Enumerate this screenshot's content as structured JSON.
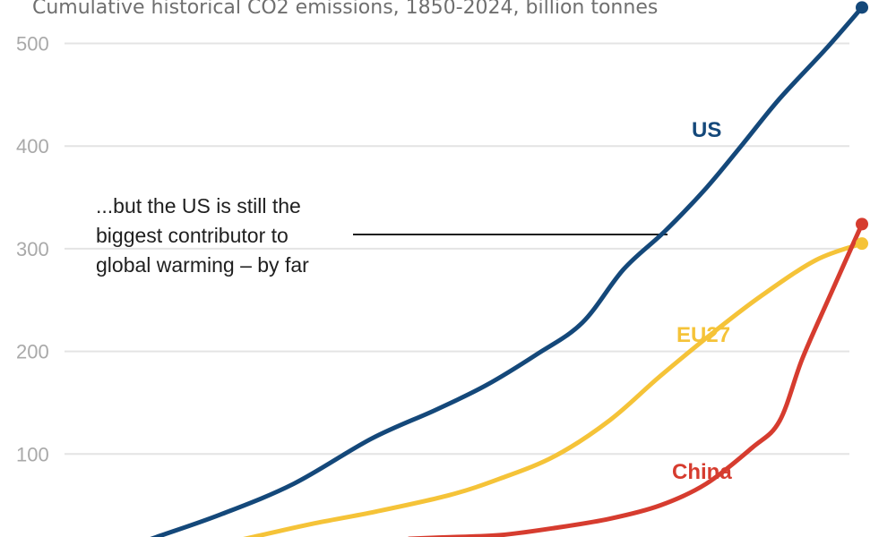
{
  "chart_data": {
    "type": "line",
    "title": "Cumulative historical CO2 emissions, 1850-2024, billion tonnes",
    "xlabel": "",
    "ylabel": "",
    "xlim": [
      1850,
      2024
    ],
    "ylim": [
      0,
      500
    ],
    "yticks": [
      100,
      200,
      300,
      400,
      500
    ],
    "ytick_labels": [
      "100",
      "200",
      "300",
      "400",
      "500"
    ],
    "grid": true,
    "legend": "inline labels",
    "series": [
      {
        "name": "US",
        "label": "US",
        "color": "#14487a",
        "end_marker": true,
        "points": [
          [
            1870,
            19
          ],
          [
            1884,
            41
          ],
          [
            1900,
            71
          ],
          [
            1917,
            115
          ],
          [
            1931,
            143
          ],
          [
            1942,
            167
          ],
          [
            1953,
            197
          ],
          [
            1963,
            228
          ],
          [
            1972,
            280
          ],
          [
            1981,
            317
          ],
          [
            1990,
            359
          ],
          [
            1998,
            402
          ],
          [
            2006,
            446
          ],
          [
            2016,
            494
          ],
          [
            2024,
            535
          ]
        ]
      },
      {
        "name": "EU27",
        "label": "EU27",
        "color": "#f5c338",
        "end_marker": true,
        "points": [
          [
            1891,
            19
          ],
          [
            1904,
            32
          ],
          [
            1918,
            44
          ],
          [
            1934,
            60
          ],
          [
            1945,
            76
          ],
          [
            1957,
            98
          ],
          [
            1969,
            133
          ],
          [
            1980,
            176
          ],
          [
            1992,
            220
          ],
          [
            2002,
            254
          ],
          [
            2014,
            289
          ],
          [
            2024,
            305
          ]
        ]
      },
      {
        "name": "China",
        "label": "China",
        "color": "#d63c2f",
        "end_marker": true,
        "points": [
          [
            1934,
            19
          ],
          [
            1945,
            21
          ],
          [
            1957,
            28
          ],
          [
            1969,
            37
          ],
          [
            1980,
            50
          ],
          [
            1990,
            71
          ],
          [
            2000,
            106
          ],
          [
            2006,
            132
          ],
          [
            2011,
            193
          ],
          [
            2017,
            254
          ],
          [
            2024,
            324
          ]
        ]
      }
    ],
    "annotations": [
      {
        "lines": [
          "...but the US is still the",
          "biggest contributor to",
          "global warming – by far"
        ],
        "points_to": "US"
      }
    ]
  }
}
